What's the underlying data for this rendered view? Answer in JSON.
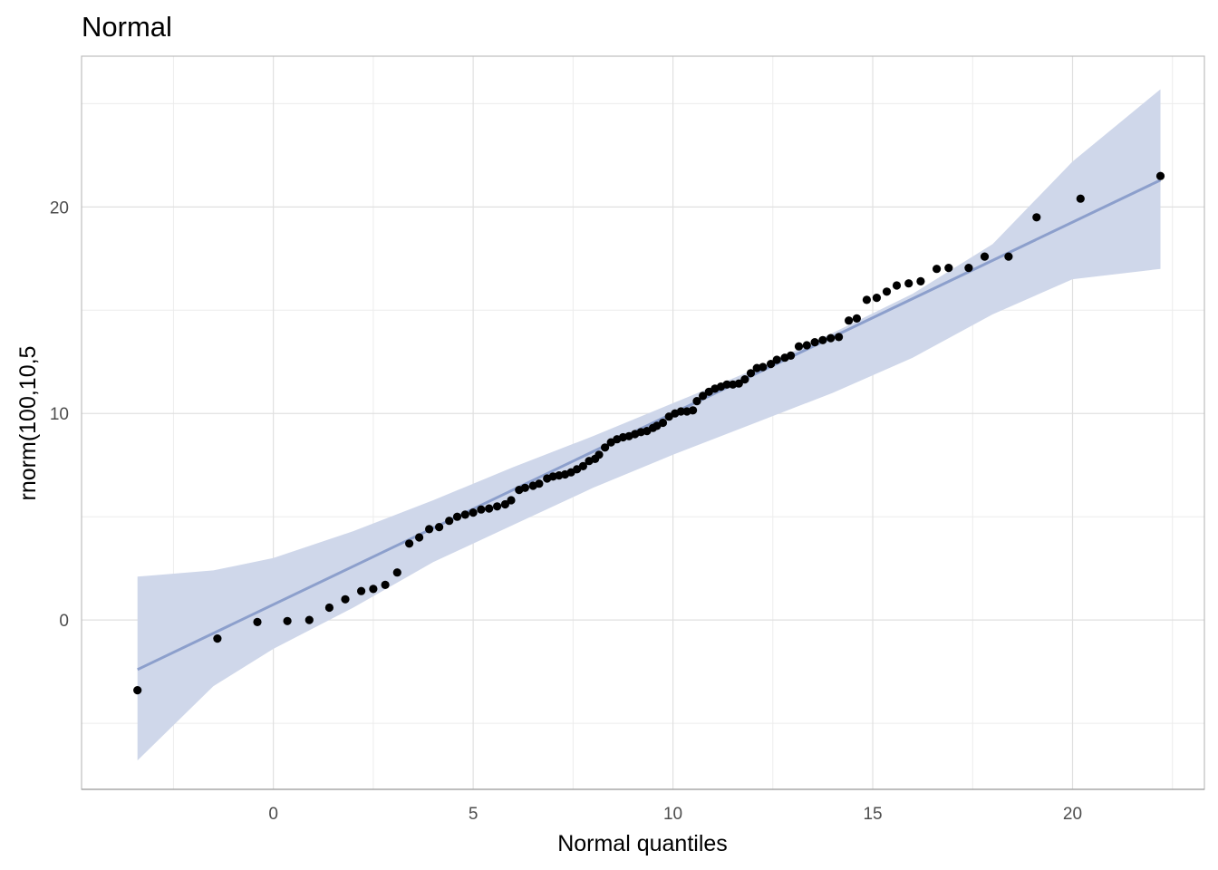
{
  "chart_data": {
    "type": "scatter",
    "title": "Normal",
    "xlabel": "Normal quantiles",
    "ylabel": "rnorm(100,10,5",
    "xlim": [
      -4.8,
      23.3
    ],
    "ylim": [
      -8.2,
      27.3
    ],
    "x_ticks": [
      0,
      5,
      10,
      15,
      20
    ],
    "y_ticks": [
      0,
      10,
      20
    ],
    "grid": true,
    "colors": {
      "points": "#000000",
      "line": "#8c9fcc",
      "band": "#cfd7ea",
      "grid": "#e0e0e0",
      "panel_border": "#bdbdbd"
    },
    "reference_line": {
      "x": [
        -3.4,
        22.2
      ],
      "y": [
        -2.4,
        21.3
      ]
    },
    "confidence_band": {
      "x": [
        -3.4,
        -1.5,
        0.0,
        2.0,
        4.0,
        6.0,
        8.0,
        10.0,
        12.0,
        14.0,
        16.0,
        18.0,
        20.0,
        22.2
      ],
      "upper": [
        2.1,
        2.4,
        3.0,
        4.3,
        5.8,
        7.4,
        8.9,
        10.5,
        12.1,
        13.9,
        15.8,
        18.2,
        22.2,
        25.7
      ],
      "lower": [
        -6.8,
        -3.2,
        -1.4,
        0.6,
        2.8,
        4.6,
        6.4,
        8.0,
        9.5,
        11.0,
        12.7,
        14.8,
        16.5,
        17.0
      ]
    },
    "points": {
      "x": [
        -3.4,
        -1.4,
        -0.4,
        0.35,
        0.9,
        1.4,
        1.8,
        2.2,
        2.5,
        2.8,
        3.1,
        3.4,
        3.65,
        3.9,
        4.15,
        4.4,
        4.6,
        4.8,
        5.0,
        5.2,
        5.4,
        5.6,
        5.8,
        5.95,
        6.15,
        6.3,
        6.5,
        6.65,
        6.85,
        7.0,
        7.15,
        7.3,
        7.45,
        7.6,
        7.75,
        7.9,
        8.05,
        8.15,
        8.3,
        8.45,
        8.6,
        8.75,
        8.9,
        9.05,
        9.2,
        9.35,
        9.5,
        9.6,
        9.75,
        9.9,
        10.05,
        10.2,
        10.35,
        10.5,
        10.6,
        10.75,
        10.9,
        11.05,
        11.2,
        11.35,
        11.5,
        11.65,
        11.8,
        11.95,
        12.1,
        12.25,
        12.45,
        12.6,
        12.8,
        12.95,
        13.15,
        13.35,
        13.55,
        13.75,
        13.95,
        14.15,
        14.4,
        14.6,
        14.85,
        15.1,
        15.35,
        15.6,
        15.9,
        16.2,
        16.6,
        16.9,
        17.4,
        17.8,
        18.4,
        19.1,
        20.2,
        22.2
      ],
      "y": [
        -3.4,
        -0.9,
        -0.1,
        -0.05,
        0.0,
        0.6,
        1.0,
        1.4,
        1.5,
        1.7,
        2.3,
        3.7,
        4.0,
        4.4,
        4.5,
        4.8,
        5.0,
        5.1,
        5.2,
        5.35,
        5.4,
        5.5,
        5.6,
        5.8,
        6.3,
        6.4,
        6.5,
        6.6,
        6.85,
        6.95,
        7.0,
        7.05,
        7.15,
        7.3,
        7.45,
        7.7,
        7.8,
        8.0,
        8.35,
        8.6,
        8.75,
        8.85,
        8.9,
        9.0,
        9.1,
        9.15,
        9.3,
        9.4,
        9.55,
        9.85,
        10.0,
        10.1,
        10.1,
        10.15,
        10.6,
        10.85,
        11.05,
        11.2,
        11.3,
        11.4,
        11.4,
        11.45,
        11.65,
        11.95,
        12.2,
        12.25,
        12.4,
        12.6,
        12.7,
        12.8,
        13.25,
        13.3,
        13.45,
        13.55,
        13.65,
        13.7,
        14.5,
        14.6,
        15.5,
        15.6,
        15.9,
        16.2,
        16.3,
        16.4,
        17.0,
        17.05,
        17.05,
        17.6,
        17.6,
        19.5,
        20.4,
        21.5
      ]
    }
  }
}
